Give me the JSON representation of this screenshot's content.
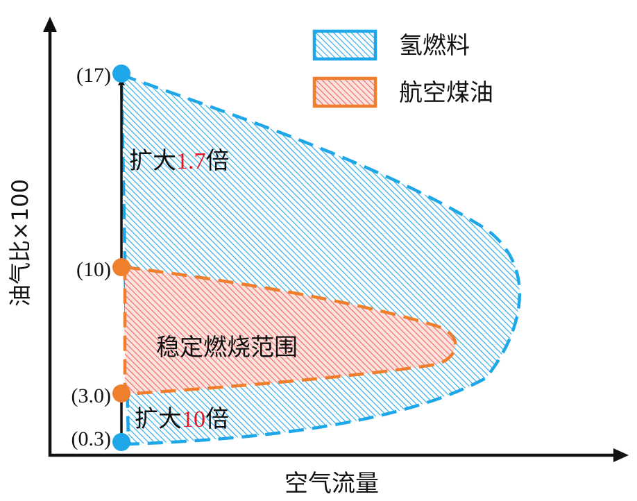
{
  "axes": {
    "x_label": "空气流量",
    "y_label": "油气比×100"
  },
  "legend": {
    "items": [
      {
        "label": "氢燃料",
        "color": "#1ea7e8"
      },
      {
        "label": "航空煤油",
        "color": "#f07f2d"
      }
    ]
  },
  "markers": [
    {
      "label": "(17)",
      "value": 17,
      "color": "#1ea7e8"
    },
    {
      "label": "(10)",
      "value": 10,
      "color": "#f07f2d"
    },
    {
      "label": "(3.0)",
      "value": 3.0,
      "color": "#f07f2d"
    },
    {
      "label": "(0.3)",
      "value": 0.3,
      "color": "#1ea7e8"
    }
  ],
  "annotations": {
    "upper": {
      "prefix": "扩大",
      "factor": "1.7",
      "suffix": "倍"
    },
    "lower": {
      "prefix": "扩大",
      "factor": "10",
      "suffix": "倍"
    },
    "region_label": "稳定燃烧范围"
  },
  "colors": {
    "hydrogen": "#1ea7e8",
    "kerosene": "#f07f2d",
    "kerosene_fill": "#f0645a",
    "highlight": "#e8141e",
    "axis": "#111111"
  }
}
